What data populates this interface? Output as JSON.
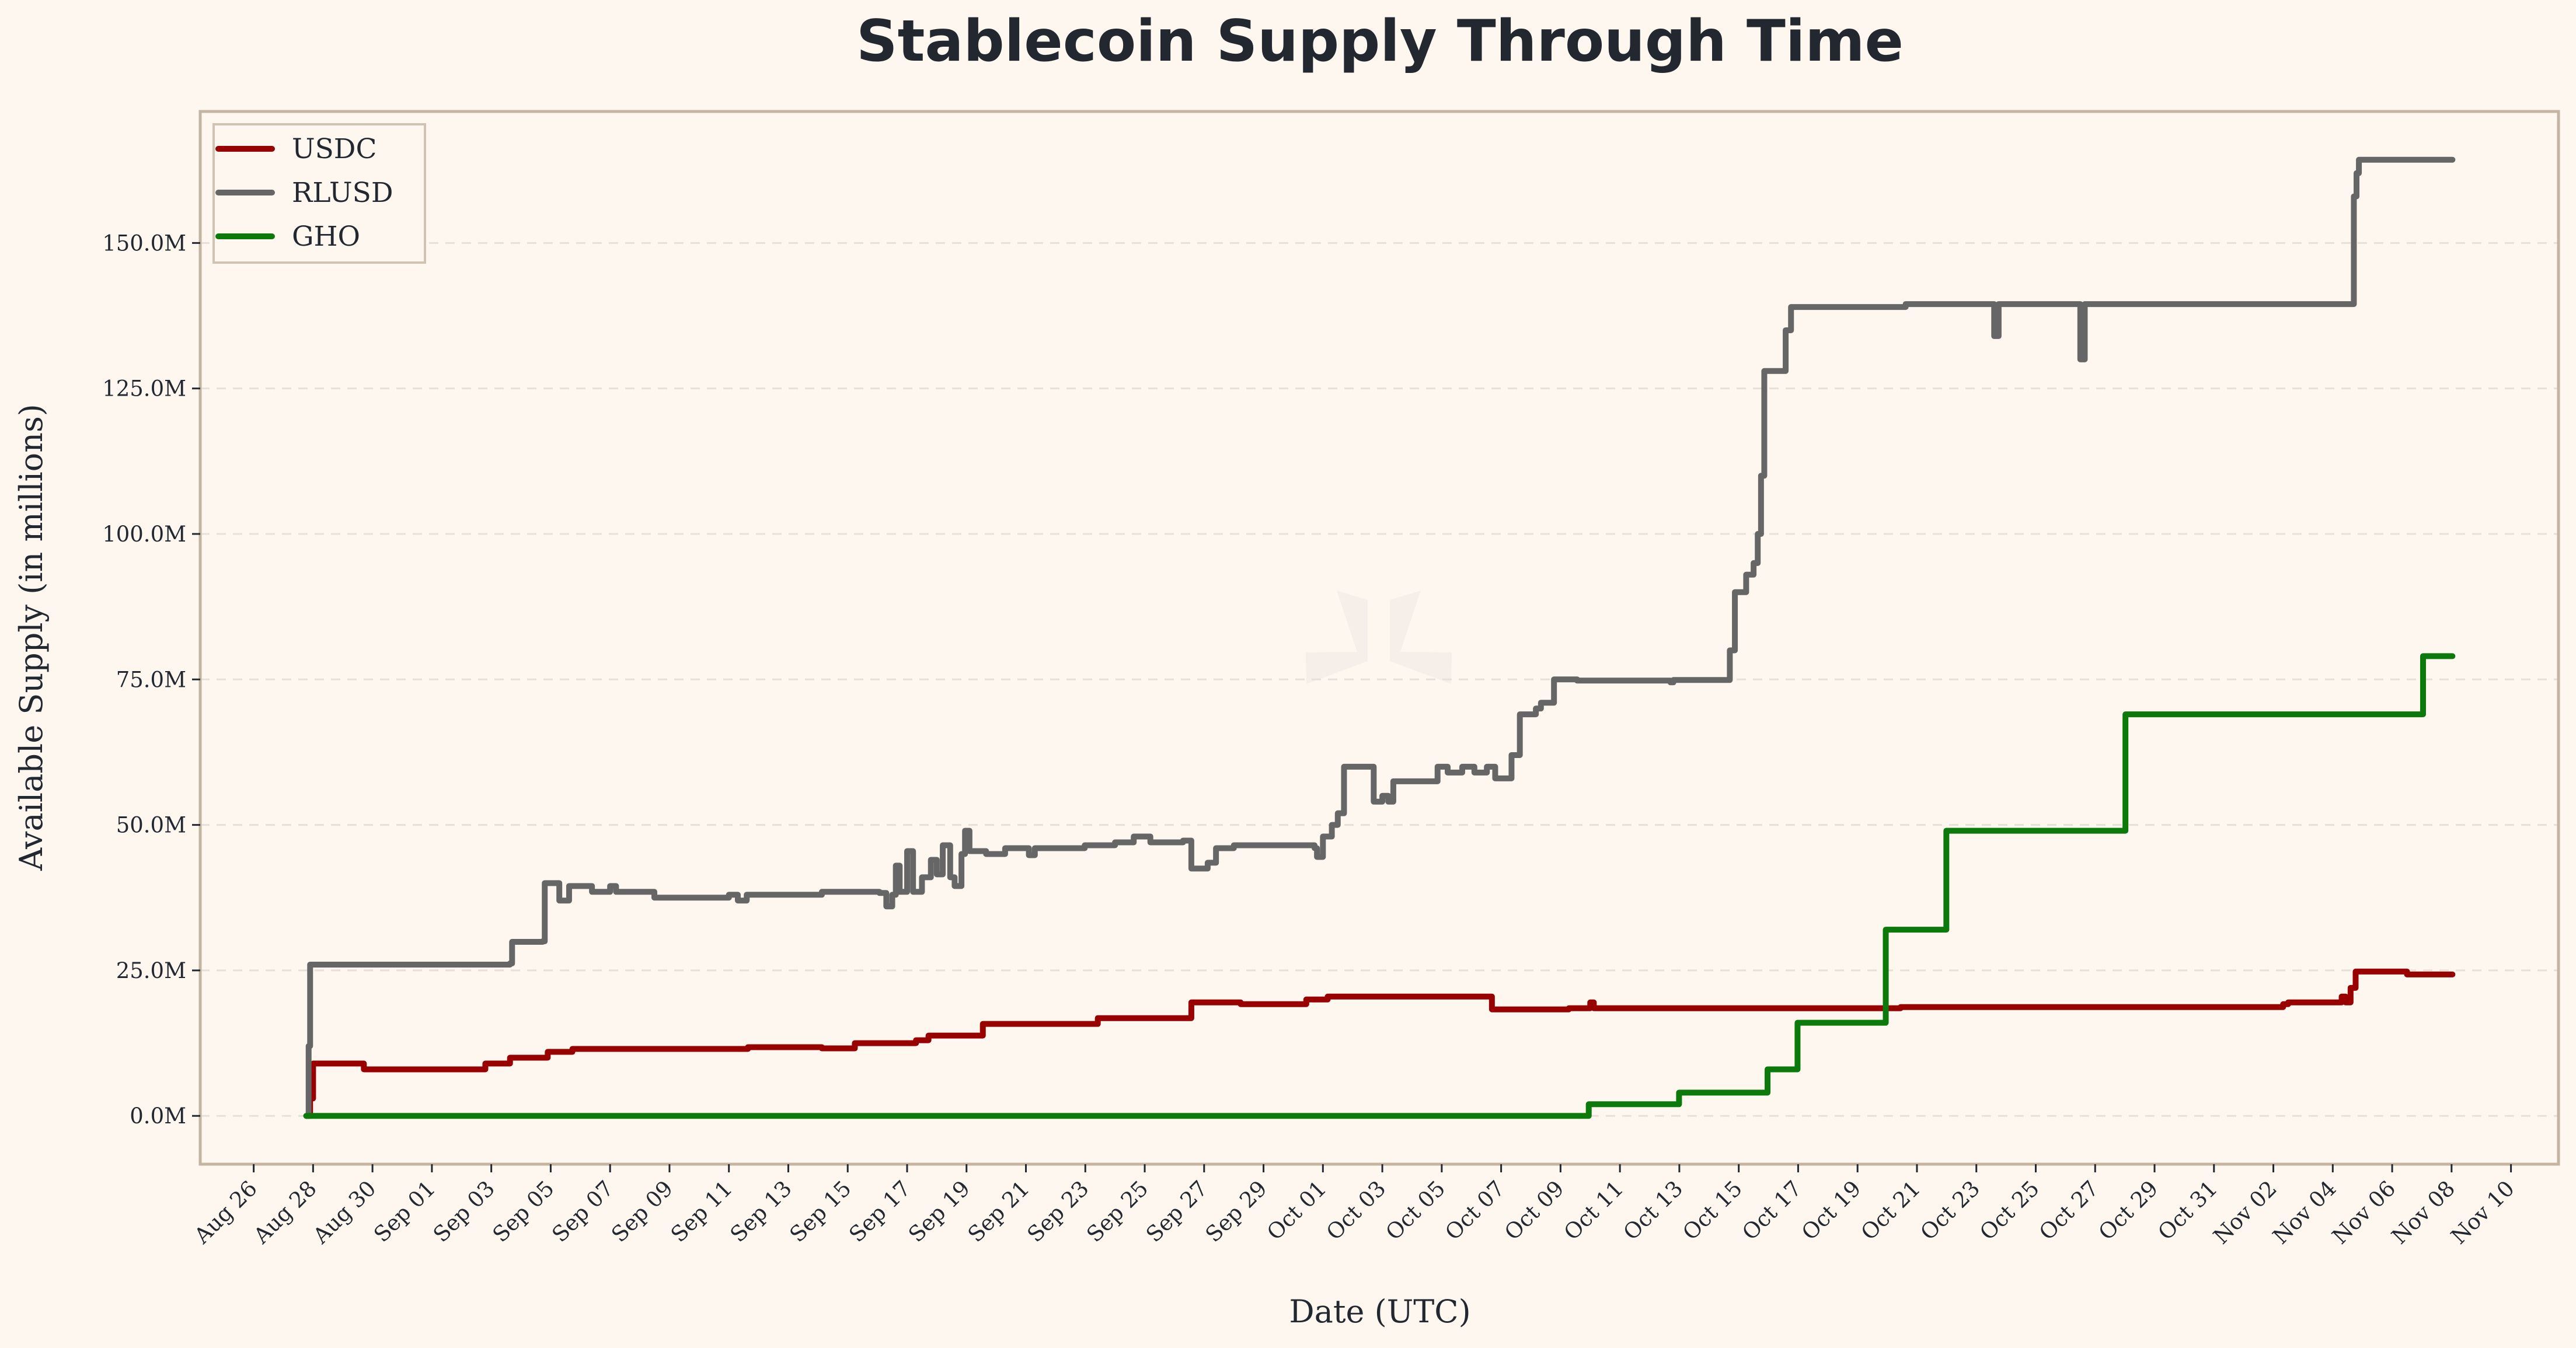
{
  "chart_data": {
    "type": "line",
    "title": "Stablecoin Supply Through Time",
    "xlabel": "Date (UTC)",
    "ylabel": "Available Supply (in millions)",
    "x_unit": "days since Aug 26",
    "xlim": [
      -1.8,
      77.6
    ],
    "ylim": [
      -8.3,
      172.6
    ],
    "grid": "y dashed",
    "legend_position": "top-left",
    "x_ticks": [
      0,
      2,
      4,
      6,
      8,
      10,
      12,
      14,
      16,
      18,
      20,
      22,
      24,
      26,
      28,
      30,
      32,
      34,
      36,
      38,
      40,
      42,
      44,
      46,
      48,
      50,
      52,
      54,
      56,
      58,
      60,
      62,
      64,
      66,
      68,
      70,
      72,
      74,
      76
    ],
    "x_tick_labels": [
      "Aug 26",
      "Aug 28",
      "Aug 30",
      "Sep 01",
      "Sep 03",
      "Sep 05",
      "Sep 07",
      "Sep 09",
      "Sep 11",
      "Sep 13",
      "Sep 15",
      "Sep 17",
      "Sep 19",
      "Sep 21",
      "Sep 23",
      "Sep 25",
      "Sep 27",
      "Sep 29",
      "Oct 01",
      "Oct 03",
      "Oct 05",
      "Oct 07",
      "Oct 09",
      "Oct 11",
      "Oct 13",
      "Oct 15",
      "Oct 17",
      "Oct 19",
      "Oct 21",
      "Oct 23",
      "Oct 25",
      "Oct 27",
      "Oct 29",
      "Oct 31",
      "Nov 02",
      "Nov 04",
      "Nov 06",
      "Nov 08",
      "Nov 10"
    ],
    "y_ticks": [
      0,
      25,
      50,
      75,
      100,
      125,
      150
    ],
    "y_tick_labels": [
      "0.0M",
      "25.0M",
      "50.0M",
      "75.0M",
      "100.0M",
      "125.0M",
      "150.0M"
    ],
    "series": [
      {
        "name": "USDC",
        "color": "#990000",
        "step": "post",
        "points": [
          [
            1.77,
            0
          ],
          [
            1.9,
            3
          ],
          [
            2.0,
            9
          ],
          [
            3.71,
            8
          ],
          [
            7.8,
            9
          ],
          [
            8.63,
            10
          ],
          [
            9.9,
            11
          ],
          [
            10.73,
            11.5
          ],
          [
            16.64,
            11.8
          ],
          [
            19.13,
            11.6
          ],
          [
            20.24,
            12.5
          ],
          [
            22.3,
            13
          ],
          [
            22.72,
            13.8
          ],
          [
            24.55,
            15.8
          ],
          [
            28.42,
            16.8
          ],
          [
            31.57,
            19.5
          ],
          [
            33.23,
            19.2
          ],
          [
            35.44,
            20
          ],
          [
            36.16,
            20.5
          ],
          [
            41.69,
            18.3
          ],
          [
            44.28,
            18.5
          ],
          [
            45.0,
            19.5
          ],
          [
            45.12,
            18.5
          ],
          [
            55.45,
            18.7
          ],
          [
            68.33,
            19.2
          ],
          [
            68.5,
            19.5
          ],
          [
            70.3,
            20.5
          ],
          [
            70.43,
            19.5
          ],
          [
            70.6,
            22
          ],
          [
            70.77,
            24.8
          ],
          [
            72.5,
            24.3
          ],
          [
            74.03,
            24.3
          ]
        ]
      },
      {
        "name": "RLUSD",
        "color": "#666666",
        "step": "post",
        "points": [
          [
            1.77,
            0
          ],
          [
            1.85,
            12
          ],
          [
            1.9,
            26
          ],
          [
            8.63,
            26.2
          ],
          [
            8.7,
            29.9
          ],
          [
            9.73,
            30
          ],
          [
            9.8,
            40
          ],
          [
            10.29,
            37
          ],
          [
            10.62,
            39.5
          ],
          [
            11.39,
            38.5
          ],
          [
            12.0,
            39.5
          ],
          [
            12.2,
            38.5
          ],
          [
            13.49,
            37.5
          ],
          [
            16.0,
            38
          ],
          [
            16.3,
            37
          ],
          [
            16.6,
            38
          ],
          [
            19.13,
            38.5
          ],
          [
            21.07,
            38.3
          ],
          [
            21.3,
            36
          ],
          [
            21.5,
            38
          ],
          [
            21.62,
            43
          ],
          [
            21.75,
            38.5
          ],
          [
            22.0,
            45.5
          ],
          [
            22.2,
            38.5
          ],
          [
            22.5,
            41
          ],
          [
            22.8,
            44
          ],
          [
            23.0,
            41.5
          ],
          [
            23.2,
            46.5
          ],
          [
            23.45,
            41
          ],
          [
            23.6,
            39.5
          ],
          [
            23.83,
            45
          ],
          [
            23.95,
            49
          ],
          [
            24.1,
            45.5
          ],
          [
            24.66,
            45
          ],
          [
            25.3,
            46
          ],
          [
            26.1,
            44.8
          ],
          [
            26.3,
            46
          ],
          [
            27.98,
            46.5
          ],
          [
            29.0,
            47
          ],
          [
            29.63,
            48
          ],
          [
            30.19,
            47
          ],
          [
            31.29,
            47.3
          ],
          [
            31.57,
            42.5
          ],
          [
            32.12,
            43.5
          ],
          [
            32.4,
            46
          ],
          [
            33.0,
            46.5
          ],
          [
            35.72,
            46
          ],
          [
            35.8,
            44.5
          ],
          [
            36.0,
            48
          ],
          [
            36.3,
            50
          ],
          [
            36.5,
            52
          ],
          [
            36.71,
            60
          ],
          [
            37.71,
            54
          ],
          [
            38.0,
            55
          ],
          [
            38.2,
            54
          ],
          [
            38.37,
            57.5
          ],
          [
            39.86,
            60
          ],
          [
            40.2,
            59
          ],
          [
            40.69,
            60
          ],
          [
            41.1,
            59
          ],
          [
            41.52,
            60
          ],
          [
            41.8,
            58
          ],
          [
            42.35,
            62
          ],
          [
            42.63,
            69
          ],
          [
            43.17,
            70
          ],
          [
            43.34,
            71
          ],
          [
            43.78,
            75
          ],
          [
            44.56,
            74.8
          ],
          [
            47.7,
            74.5
          ],
          [
            47.8,
            74.9
          ],
          [
            49.7,
            80
          ],
          [
            49.87,
            90
          ],
          [
            50.25,
            93
          ],
          [
            50.5,
            95
          ],
          [
            50.64,
            100
          ],
          [
            50.75,
            110
          ],
          [
            50.86,
            128
          ],
          [
            51.58,
            135
          ],
          [
            51.76,
            139
          ],
          [
            55.62,
            139.5
          ],
          [
            58.6,
            134
          ],
          [
            58.75,
            139.5
          ],
          [
            61.5,
            130
          ],
          [
            61.65,
            139.5
          ],
          [
            70.54,
            139.5
          ],
          [
            70.71,
            158
          ],
          [
            70.8,
            162
          ],
          [
            70.88,
            164.3
          ],
          [
            74.03,
            164.3
          ]
        ]
      },
      {
        "name": "GHO",
        "color": "#0b7a0b",
        "step": "post",
        "points": [
          [
            1.77,
            0
          ],
          [
            44.95,
            2
          ],
          [
            47.99,
            4
          ],
          [
            50.97,
            8
          ],
          [
            51.98,
            16
          ],
          [
            54.95,
            32
          ],
          [
            56.99,
            49
          ],
          [
            63.02,
            69
          ],
          [
            73.04,
            79
          ],
          [
            74.03,
            79
          ]
        ]
      }
    ]
  }
}
